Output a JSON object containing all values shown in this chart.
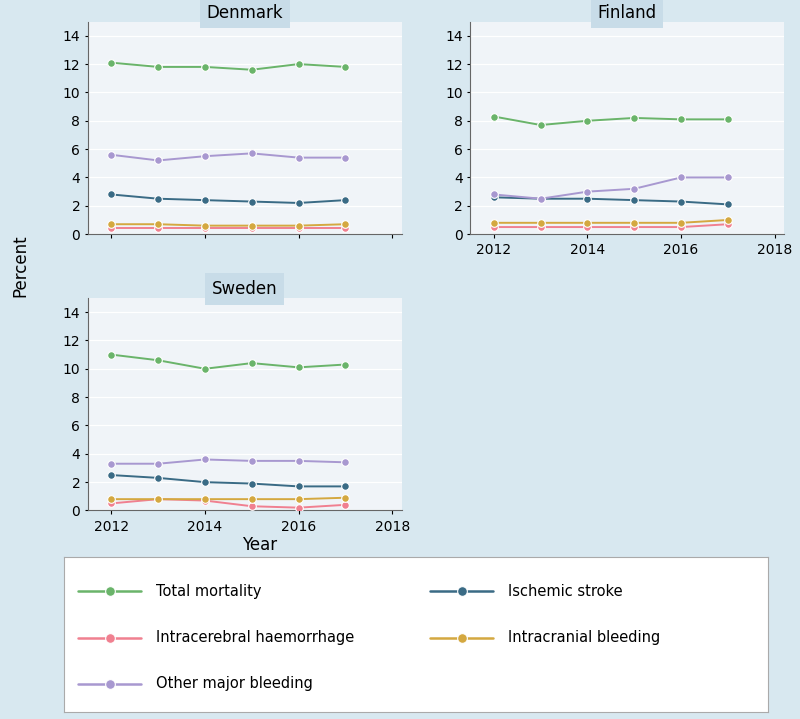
{
  "years": [
    2012,
    2013,
    2014,
    2015,
    2016,
    2017
  ],
  "denmark": {
    "total_mortality": [
      12.1,
      11.8,
      11.8,
      11.6,
      12.0,
      11.8
    ],
    "ischemic_stroke": [
      2.8,
      2.5,
      2.4,
      2.3,
      2.2,
      2.4
    ],
    "intracerebral_haemorrhage": [
      0.4,
      0.4,
      0.4,
      0.4,
      0.4,
      0.4
    ],
    "intracranial_bleeding": [
      0.7,
      0.7,
      0.6,
      0.6,
      0.6,
      0.7
    ],
    "other_major_bleeding": [
      5.6,
      5.2,
      5.5,
      5.7,
      5.4,
      5.4
    ]
  },
  "finland": {
    "total_mortality": [
      8.3,
      7.7,
      8.0,
      8.2,
      8.1,
      8.1
    ],
    "ischemic_stroke": [
      2.6,
      2.5,
      2.5,
      2.4,
      2.3,
      2.1
    ],
    "intracerebral_haemorrhage": [
      0.5,
      0.5,
      0.5,
      0.5,
      0.5,
      0.7
    ],
    "intracranial_bleeding": [
      0.8,
      0.8,
      0.8,
      0.8,
      0.8,
      1.0
    ],
    "other_major_bleeding": [
      2.8,
      2.5,
      3.0,
      3.2,
      4.0,
      4.0
    ]
  },
  "sweden": {
    "total_mortality": [
      11.0,
      10.6,
      10.0,
      10.4,
      10.1,
      10.3
    ],
    "ischemic_stroke": [
      2.5,
      2.3,
      2.0,
      1.9,
      1.7,
      1.7
    ],
    "intracerebral_haemorrhage": [
      0.5,
      0.8,
      0.7,
      0.3,
      0.2,
      0.4
    ],
    "intracranial_bleeding": [
      0.8,
      0.8,
      0.8,
      0.8,
      0.8,
      0.9
    ],
    "other_major_bleeding": [
      3.3,
      3.3,
      3.6,
      3.5,
      3.5,
      3.4
    ]
  },
  "colors": {
    "total_mortality": "#6ab46a",
    "ischemic_stroke": "#3a6b85",
    "intracerebral_haemorrhage": "#f08090",
    "intracranial_bleeding": "#d4a840",
    "other_major_bleeding": "#a898d0"
  },
  "title_bg_color": "#c8dce8",
  "background_color": "#d8e8f0",
  "panel_bg_color": "#f0f4f8",
  "grid_color": "#ffffff",
  "ylim": [
    0,
    15
  ],
  "yticks": [
    0,
    2,
    4,
    6,
    8,
    10,
    12,
    14
  ],
  "xlim": [
    2011.5,
    2018.2
  ],
  "xticks": [
    2012,
    2014,
    2016,
    2018
  ],
  "ylabel": "Percent",
  "xlabel": "Year"
}
